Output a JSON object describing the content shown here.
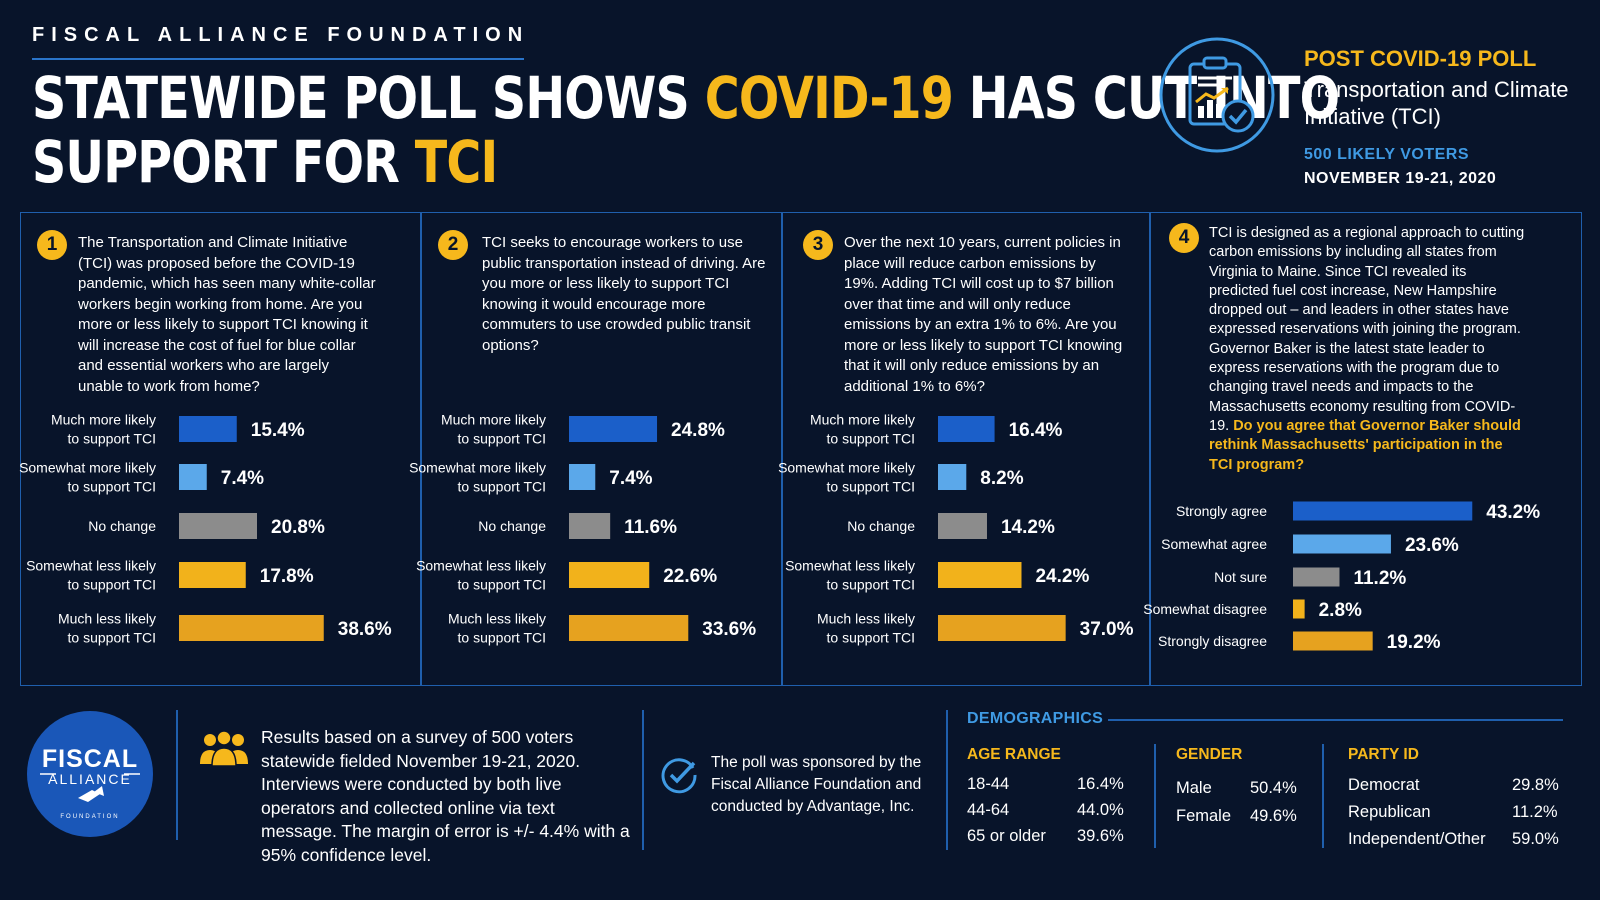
{
  "header": {
    "org_name": "FISCAL ALLIANCE FOUNDATION",
    "headline": {
      "part1": "STATEWIDE POLL SHOWS ",
      "highlight1": "COVID-19",
      "part2": " HAS CUT INTO",
      "part3": "SUPPORT FOR ",
      "highlight2": "TCI"
    },
    "poll_title": "POST COVID-19 POLL",
    "poll_subtitle": "Transportation and Climate Initiative (TCI)",
    "poll_sample": "500 LIKELY VOTERS",
    "poll_dates": "NOVEMBER 19-21, 2020"
  },
  "colors": {
    "background": "#08142a",
    "accent_yellow": "#f6b81c",
    "accent_blue": "#3f9ae3",
    "border_blue": "#1f5fad",
    "bar_dark_blue": "#1b5fc9",
    "bar_light_blue": "#5ba8ea",
    "bar_gray": "#8c8c8c",
    "bar_yellow": "#f2b21b",
    "bar_orange_yellow": "#e6a21f"
  },
  "icons": {
    "poll": "clipboard-chart-check-icon",
    "people": "people-group-icon",
    "check": "check-circle-icon",
    "logo": "fiscal-alliance-logo"
  },
  "questions": [
    {
      "number": "1",
      "text": "The Transportation and Climate Initiative (TCI) was proposed before the COVID-19 pandemic, which has seen many white-collar workers begin working from home. Are you more or less likely to support TCI knowing it will increase the cost of fuel for blue collar and essential workers who are largely unable to work from home?"
    },
    {
      "number": "2",
      "text": "TCI seeks to encourage workers to use public transportation instead of driving. Are you more or less likely to support TCI knowing it would encourage more commuters to use crowded public transit options?"
    },
    {
      "number": "3",
      "text": "Over the next 10 years, current policies in place will reduce carbon emissions by 19%. Adding TCI will cost up to $7 billion over that time and will only reduce emissions by an extra 1% to 6%. Are you more or less likely to support TCI knowing that it will only reduce emissions by an additional 1% to 6%?"
    },
    {
      "number": "4",
      "text": "TCI is designed as a regional approach to cutting carbon emissions by including all states from Virginia to Maine. Since TCI revealed its predicted fuel cost increase, New Hampshire dropped out – and leaders in other states have expressed reservations with joining the program. Governor Baker is the latest state leader to express reservations with the program due to changing travel needs and impacts to the Massachusetts economy resulting from COVID-19.",
      "ask": "Do you agree that Governor Baker should rethink Massachusetts' participation in the TCI program?"
    }
  ],
  "chart_data": [
    {
      "type": "bar",
      "orientation": "horizontal",
      "categories": [
        "Much more likely\nto support TCI",
        "Somewhat more likely\nto support TCI",
        "No change",
        "Somewhat less likely\nto support TCI",
        "Much less likely\nto support TCI"
      ],
      "values": [
        15.4,
        7.4,
        20.8,
        17.8,
        38.6
      ],
      "value_labels": [
        "15.4%",
        "7.4%",
        "20.8%",
        "17.8%",
        "38.6%"
      ],
      "colors": [
        "#1b5fc9",
        "#5ba8ea",
        "#8c8c8c",
        "#f2b21b",
        "#e6a21f"
      ]
    },
    {
      "type": "bar",
      "orientation": "horizontal",
      "categories": [
        "Much more likely\nto support TCI",
        "Somewhat more likely\nto support TCI",
        "No change",
        "Somewhat less likely\nto support TCI",
        "Much less likely\nto support TCI"
      ],
      "values": [
        24.8,
        7.4,
        11.6,
        22.6,
        33.6
      ],
      "value_labels": [
        "24.8%",
        "7.4%",
        "11.6%",
        "22.6%",
        "33.6%"
      ],
      "colors": [
        "#1b5fc9",
        "#5ba8ea",
        "#8c8c8c",
        "#f2b21b",
        "#e6a21f"
      ]
    },
    {
      "type": "bar",
      "orientation": "horizontal",
      "categories": [
        "Much more likely\nto support TCI",
        "Somewhat more likely\nto support TCI",
        "No change",
        "Somewhat less likely\nto support TCI",
        "Much less likely\nto support TCI"
      ],
      "values": [
        16.4,
        8.2,
        14.2,
        24.2,
        37.0
      ],
      "value_labels": [
        "16.4%",
        "8.2%",
        "14.2%",
        "24.2%",
        "37.0%"
      ],
      "colors": [
        "#1b5fc9",
        "#5ba8ea",
        "#8c8c8c",
        "#f2b21b",
        "#e6a21f"
      ]
    },
    {
      "type": "bar",
      "orientation": "horizontal",
      "categories": [
        "Strongly agree",
        "Somewhat agree",
        "Not sure",
        "Somewhat disagree",
        "Strongly disagree"
      ],
      "values": [
        43.2,
        23.6,
        11.2,
        2.8,
        19.2
      ],
      "value_labels": [
        "43.2%",
        "23.6%",
        "11.2%",
        "2.8%",
        "19.2%"
      ],
      "colors": [
        "#1b5fc9",
        "#5ba8ea",
        "#8c8c8c",
        "#f2b21b",
        "#e6a21f"
      ]
    }
  ],
  "footer": {
    "logo_text": {
      "line1": "FISCAL",
      "line2": "ALLIANCE",
      "line3": "FOUNDATION"
    },
    "methodology": "Results based on a survey of 500 voters statewide fielded November 19-21, 2020. Interviews were conducted by both live operators and collected online via text message. The margin of error is +/- 4.4% with a 95% confidence level.",
    "sponsor": "The poll was sponsored by the Fiscal Alliance Foundation and conducted by Advantage, Inc.",
    "demographics": {
      "title": "DEMOGRAPHICS",
      "age": {
        "heading": "AGE RANGE",
        "rows": [
          {
            "label": "18-44",
            "value": "16.4%"
          },
          {
            "label": "44-64",
            "value": "44.0%"
          },
          {
            "label": "65 or older",
            "value": "39.6%"
          }
        ]
      },
      "gender": {
        "heading": "GENDER",
        "rows": [
          {
            "label": "Male",
            "value": "50.4%"
          },
          {
            "label": "Female",
            "value": "49.6%"
          }
        ]
      },
      "party": {
        "heading": "PARTY ID",
        "rows": [
          {
            "label": "Democrat",
            "value": "29.8%"
          },
          {
            "label": "Republican",
            "value": "11.2%"
          },
          {
            "label": "Independent/Other",
            "value": "59.0%"
          }
        ]
      }
    }
  }
}
